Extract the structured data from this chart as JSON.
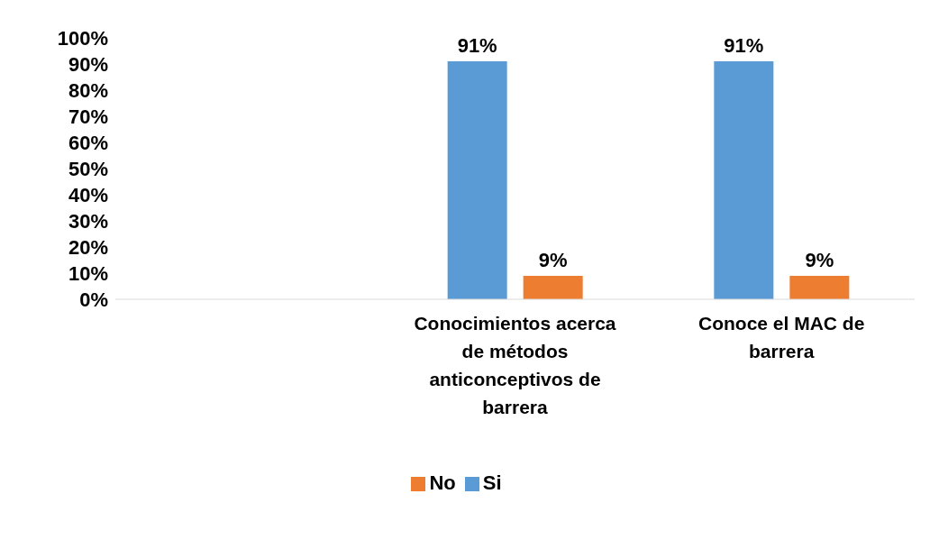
{
  "chart_data": {
    "type": "bar",
    "categories": [
      null,
      "Conocimientos acerca de métodos anticonceptivos de barrera",
      "Conoce el MAC de barrera"
    ],
    "series": [
      {
        "name": "Si",
        "color": "#5b9bd5",
        "values": [
          null,
          91,
          91
        ],
        "value_labels": [
          null,
          "91%",
          "91%"
        ]
      },
      {
        "name": "No",
        "color": "#ed7d31",
        "values": [
          null,
          9,
          9
        ],
        "value_labels": [
          null,
          "9%",
          "9%"
        ]
      }
    ],
    "ylim": [
      0,
      100
    ],
    "yticks": [
      {
        "value": 0,
        "label": "0%"
      },
      {
        "value": 10,
        "label": "10%"
      },
      {
        "value": 20,
        "label": "20%"
      },
      {
        "value": 30,
        "label": "30%"
      },
      {
        "value": 40,
        "label": "40%"
      },
      {
        "value": 50,
        "label": "50%"
      },
      {
        "value": 60,
        "label": "60%"
      },
      {
        "value": 70,
        "label": "70%"
      },
      {
        "value": 80,
        "label": "80%"
      },
      {
        "value": 90,
        "label": "90%"
      },
      {
        "value": 100,
        "label": "100%"
      }
    ],
    "legend": "bottom"
  }
}
